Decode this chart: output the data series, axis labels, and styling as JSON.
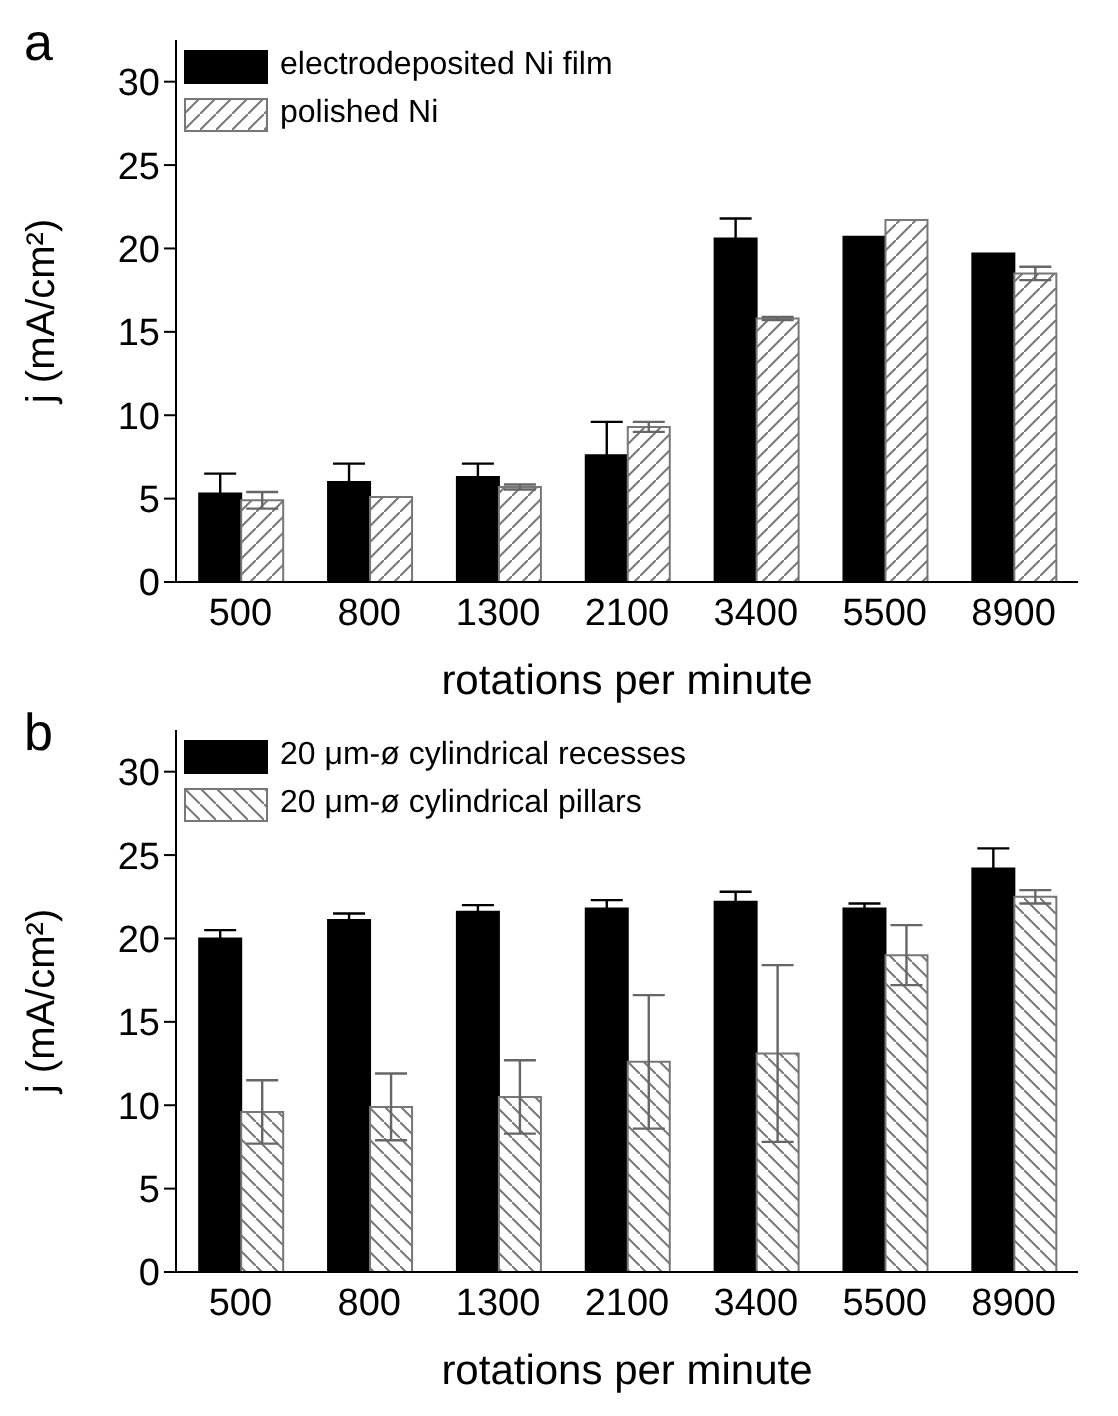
{
  "chart_data": [
    {
      "type": "bar",
      "annotations": [
        "a"
      ],
      "xlabel": "rotations per minute",
      "ylabel": "j (mA/cm²)",
      "categories": [
        "500",
        "800",
        "1300",
        "2100",
        "3400",
        "5500",
        "8900"
      ],
      "series": [
        {
          "name": "electrodeposited Ni film",
          "color": "#000000",
          "values": [
            5.3,
            6.0,
            6.3,
            7.6,
            20.6,
            20.7,
            19.7
          ],
          "errors": [
            1.2,
            1.1,
            0.8,
            2.0,
            1.2,
            null,
            null
          ]
        },
        {
          "name": "polished Ni",
          "color": "#777777",
          "values": [
            4.9,
            5.1,
            5.7,
            9.3,
            15.8,
            21.7,
            18.5
          ],
          "errors": [
            0.5,
            null,
            0.15,
            0.3,
            0.1,
            null,
            0.4
          ]
        }
      ],
      "ylim": [
        0,
        32.5
      ],
      "yticks": [
        0,
        5,
        10,
        15,
        20,
        25,
        30
      ],
      "grid": false,
      "legend": "top left"
    },
    {
      "type": "bar",
      "annotations": [
        "b"
      ],
      "xlabel": "rotations per minute",
      "ylabel": "j (mA/cm²)",
      "categories": [
        "500",
        "800",
        "1300",
        "2100",
        "3400",
        "5500",
        "8900"
      ],
      "series": [
        {
          "name": "20 μm-ø cylindrical recesses",
          "color": "#000000",
          "values": [
            20.0,
            21.1,
            21.6,
            21.8,
            22.2,
            21.8,
            24.2
          ],
          "errors": [
            0.5,
            0.4,
            0.4,
            0.5,
            0.6,
            0.3,
            1.2
          ]
        },
        {
          "name": "20 μm-ø cylindrical pillars",
          "color": "#777777",
          "values": [
            9.6,
            9.9,
            10.5,
            12.6,
            13.1,
            19.0,
            22.5
          ],
          "errors": [
            1.9,
            2.0,
            2.2,
            4.0,
            5.3,
            1.8,
            0.4
          ]
        }
      ],
      "ylim": [
        0,
        32.5
      ],
      "yticks": [
        0,
        5,
        10,
        15,
        20,
        25,
        30
      ],
      "grid": false,
      "legend": "top left"
    }
  ]
}
